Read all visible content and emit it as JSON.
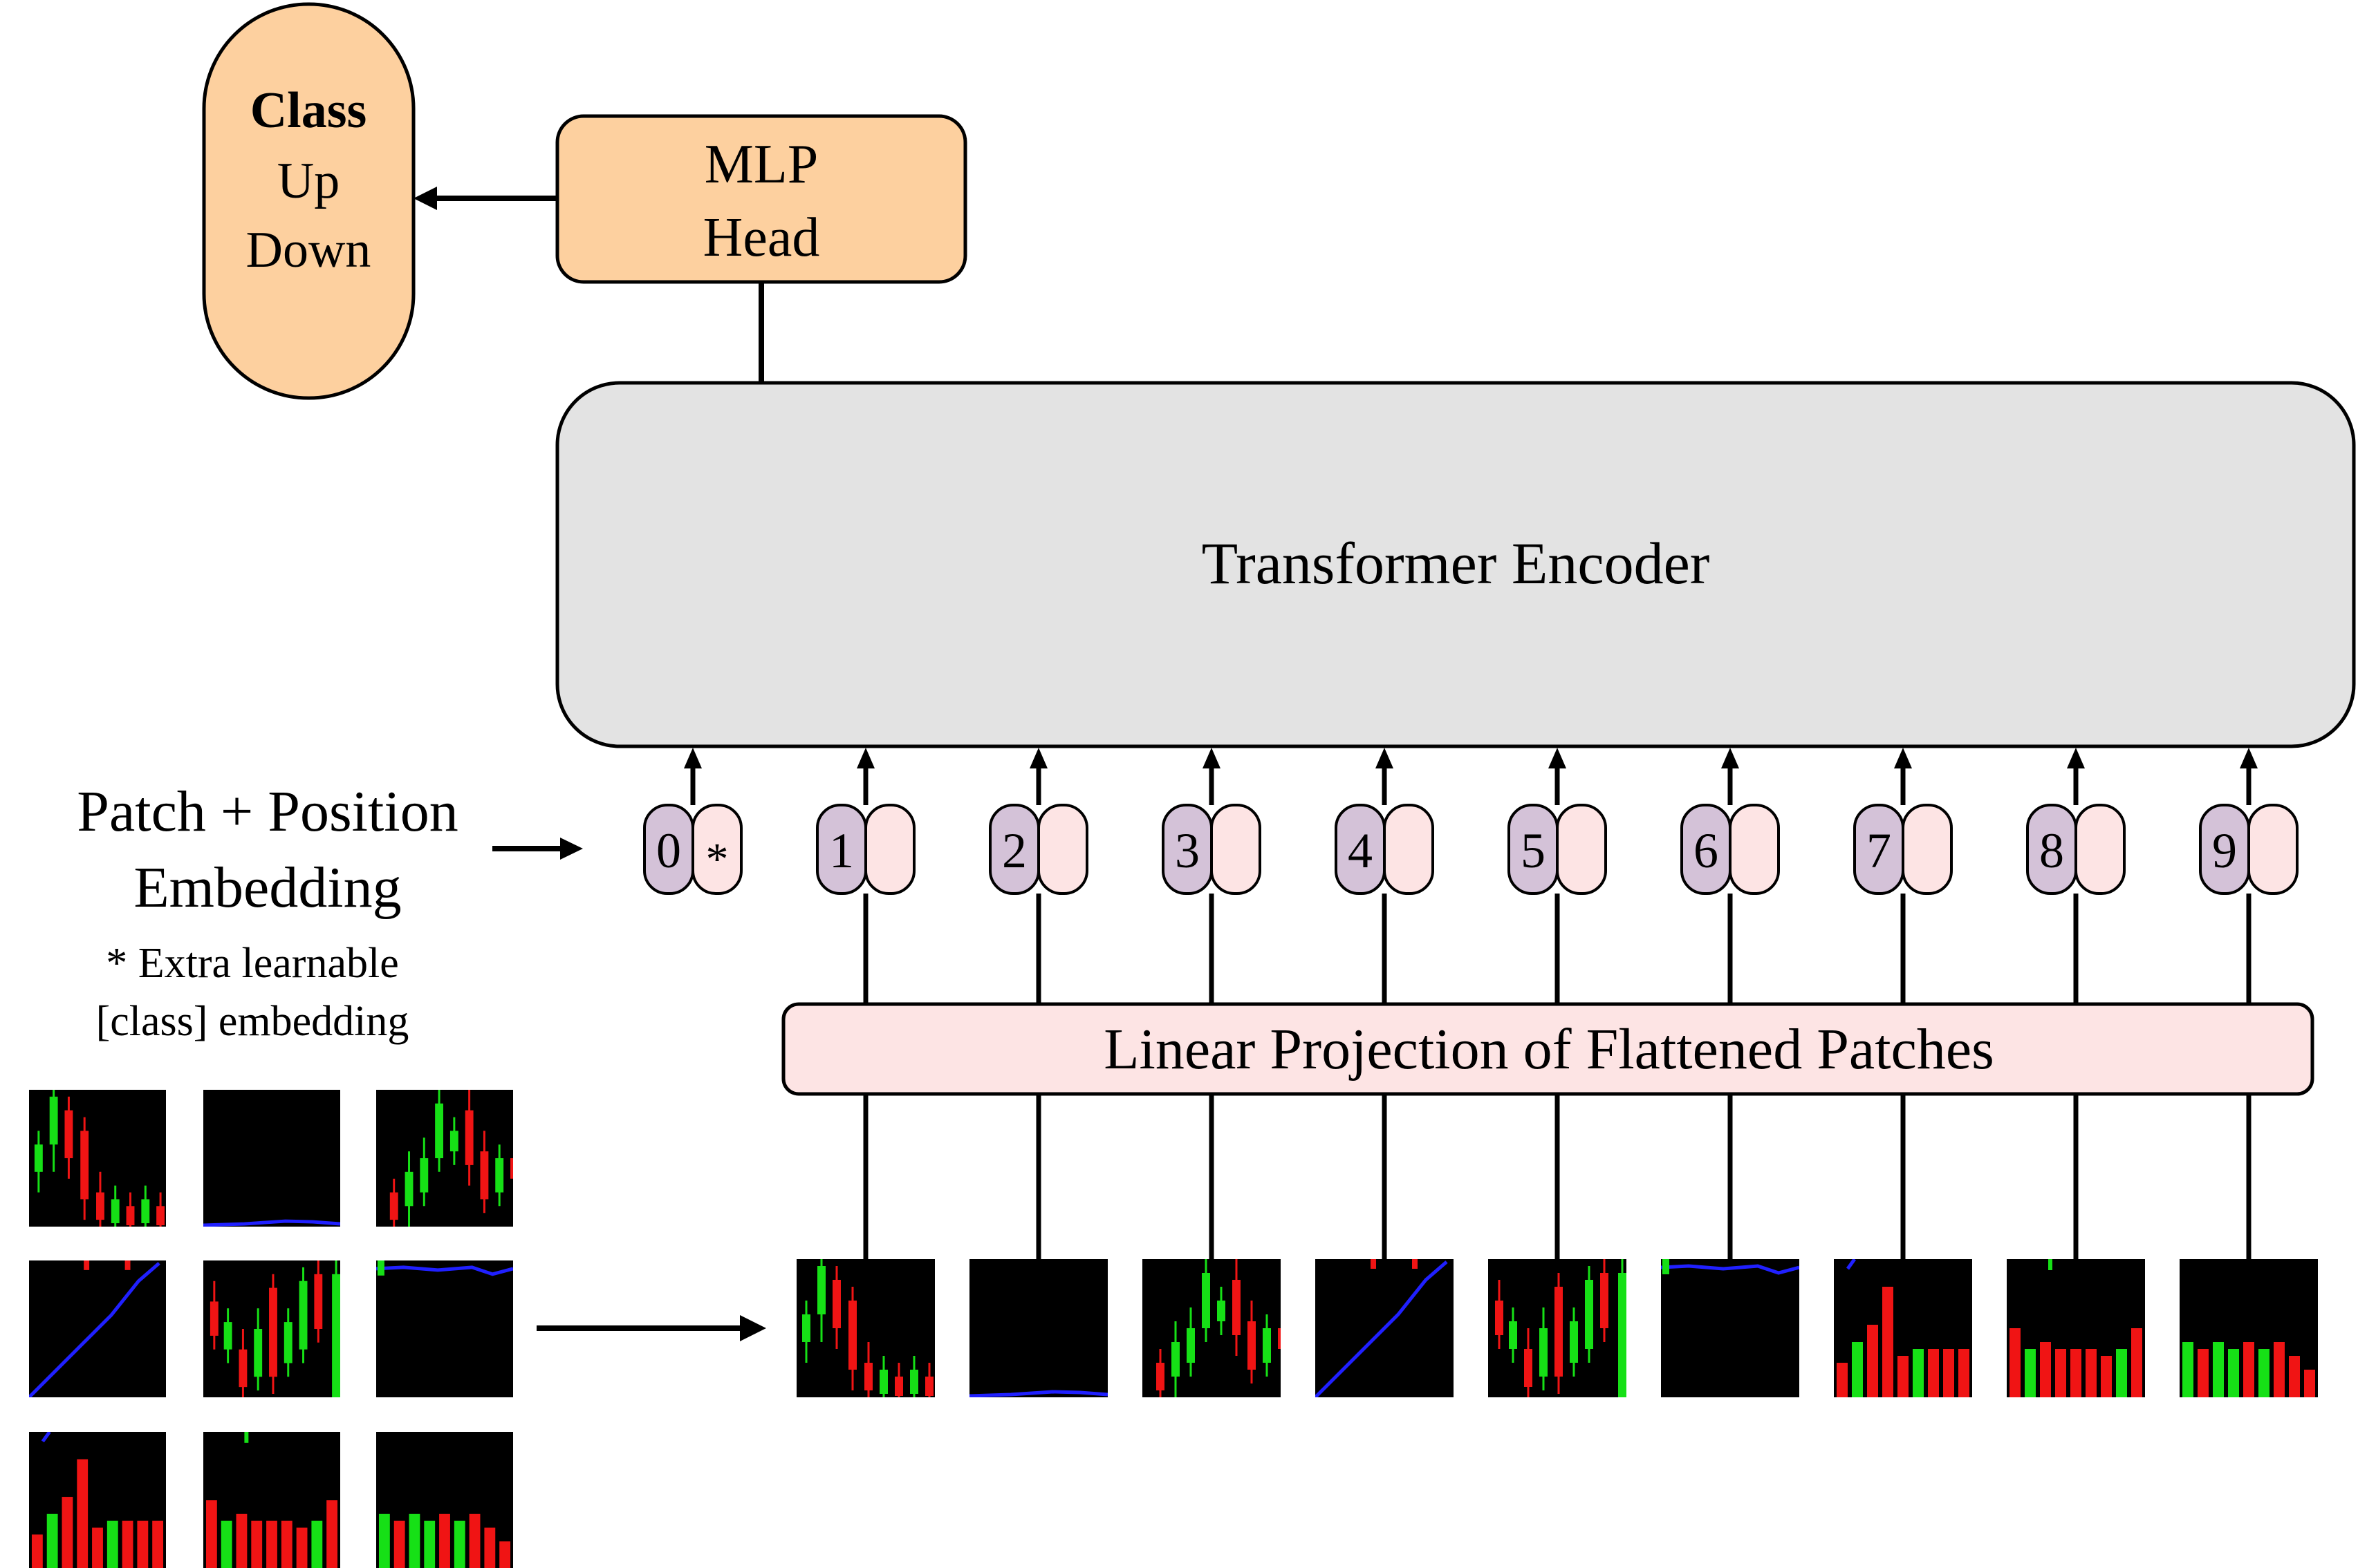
{
  "output_class": {
    "title": "Class",
    "option_up": "Up",
    "option_down": "Down"
  },
  "mlp_head": {
    "line1": "MLP",
    "line2": "Head"
  },
  "encoder": {
    "label": "Transformer Encoder"
  },
  "embedding_label": {
    "line1": "Patch + Position",
    "line2": "Embedding",
    "note1": "* Extra learnable",
    "note2": "[class] embedding"
  },
  "tokens": [
    {
      "position": "0",
      "extra": "*"
    },
    {
      "position": "1",
      "extra": ""
    },
    {
      "position": "2",
      "extra": ""
    },
    {
      "position": "3",
      "extra": ""
    },
    {
      "position": "4",
      "extra": ""
    },
    {
      "position": "5",
      "extra": ""
    },
    {
      "position": "6",
      "extra": ""
    },
    {
      "position": "7",
      "extra": ""
    },
    {
      "position": "8",
      "extra": ""
    },
    {
      "position": "9",
      "extra": ""
    }
  ],
  "projection": {
    "label": "Linear Projection of Flattened Patches"
  },
  "colors": {
    "output_fill": "#fdd09f",
    "mlp_fill": "#fdd09f",
    "encoder_fill": "#e3e3e3",
    "position_fill": "#d4c2d8",
    "patch_fill": "#fde4e4",
    "projection_fill": "#fde4e4",
    "candle_up": "#16e016",
    "candle_down": "#f01414",
    "trend_line": "#2020ff",
    "patch_bg": "#000000"
  },
  "patch_thumbnails": [
    {
      "id": 1,
      "content": "candlestick"
    },
    {
      "id": 2,
      "content": "trend-line-flat"
    },
    {
      "id": 3,
      "content": "candlestick"
    },
    {
      "id": 4,
      "content": "trend-line-rising"
    },
    {
      "id": 5,
      "content": "candlestick"
    },
    {
      "id": 6,
      "content": "trend-line-flat"
    },
    {
      "id": 7,
      "content": "volume-bars"
    },
    {
      "id": 8,
      "content": "volume-bars"
    },
    {
      "id": 9,
      "content": "volume-bars"
    }
  ]
}
